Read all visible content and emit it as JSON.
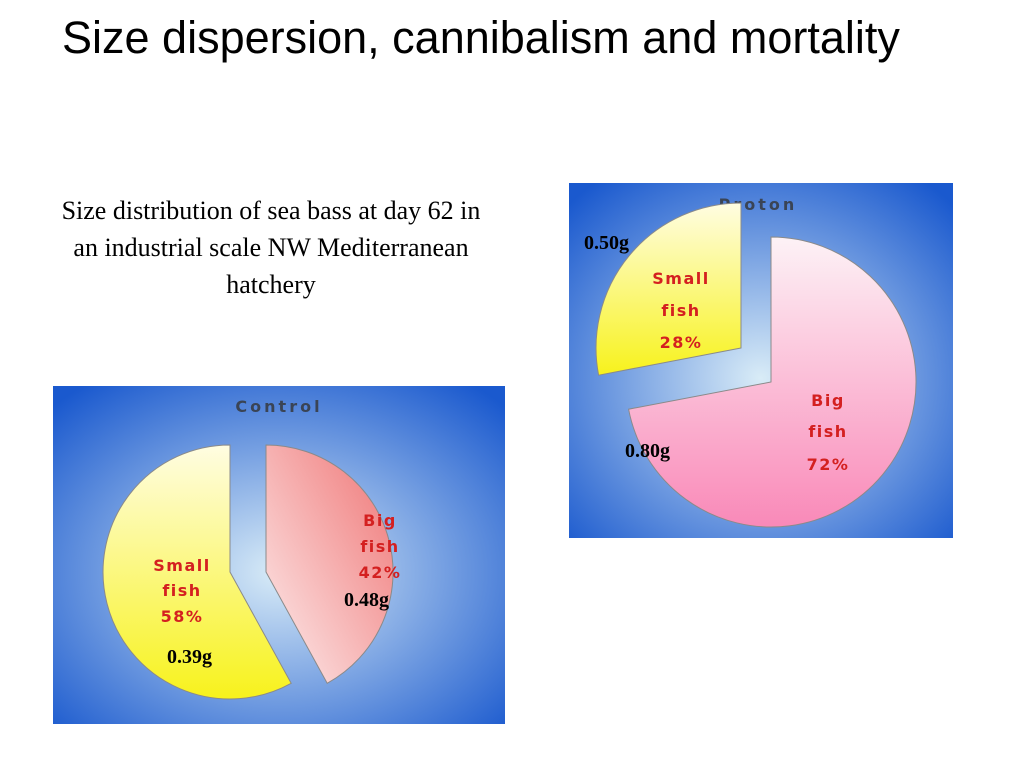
{
  "slide": {
    "title": "Size dispersion, cannibalism and mortality",
    "subtitle": "Size distribution of sea bass at day 62 in an industrial scale NW Mediterranean hatchery"
  },
  "chart_data": [
    {
      "type": "pie",
      "title": "Control",
      "slices": [
        {
          "name": "Small fish",
          "label_lines": [
            "Small",
            "fish",
            "58%"
          ],
          "value": 58,
          "weight": "0.39g",
          "colors": [
            "#fffde2",
            "#f7f21c"
          ]
        },
        {
          "name": "Big fish",
          "label_lines": [
            "Big",
            "fish",
            "42%"
          ],
          "value": 42,
          "weight": "0.48g",
          "colors": [
            "#fdeeee",
            "#ef7474"
          ]
        }
      ],
      "background_colors": [
        "#1a59ce",
        "#d9ecf7"
      ]
    },
    {
      "type": "pie",
      "title": "Proton",
      "slices": [
        {
          "name": "Small fish",
          "label_lines": [
            "Small",
            "fish",
            "28%"
          ],
          "value": 28,
          "weight": "0.50g",
          "colors": [
            "#fffde2",
            "#f7f21c"
          ]
        },
        {
          "name": "Big fish",
          "label_lines": [
            "Big",
            "fish",
            "72%"
          ],
          "value": 72,
          "weight": "0.80g",
          "colors": [
            "#fdf2f6",
            "#f989b8"
          ]
        }
      ],
      "background_colors": [
        "#1a59ce",
        "#d9ecf7"
      ]
    }
  ]
}
